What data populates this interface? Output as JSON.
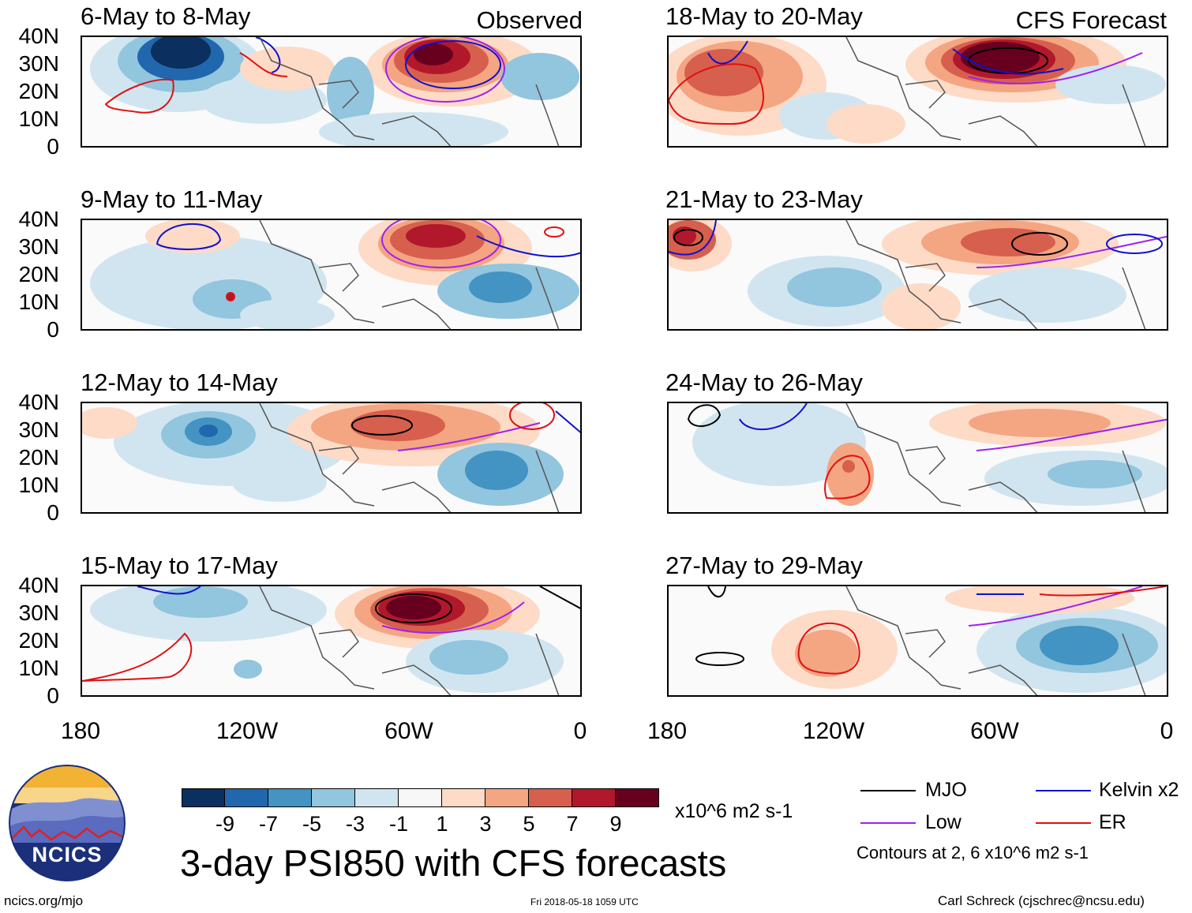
{
  "header": {
    "observed_label": "Observed",
    "forecast_label": "CFS Forecast"
  },
  "panels": [
    {
      "title": "6-May to 8-May",
      "column": "observed"
    },
    {
      "title": "9-May to 11-May",
      "column": "observed"
    },
    {
      "title": "12-May to 14-May",
      "column": "observed"
    },
    {
      "title": "15-May to 17-May",
      "column": "observed"
    },
    {
      "title": "18-May to 20-May",
      "column": "forecast"
    },
    {
      "title": "21-May to 23-May",
      "column": "forecast"
    },
    {
      "title": "24-May to 26-May",
      "column": "forecast"
    },
    {
      "title": "27-May to 29-May",
      "column": "forecast"
    }
  ],
  "axes": {
    "lat_labels": [
      "40N",
      "30N",
      "20N",
      "10N",
      "0"
    ],
    "lon_labels": [
      "180",
      "120W",
      "60W",
      "0"
    ]
  },
  "colorbar": {
    "colors": [
      "#0b2f5e",
      "#2067ad",
      "#4393c3",
      "#92c5de",
      "#d1e5f0",
      "#f7f7f7",
      "#fddbc7",
      "#f4a582",
      "#d6604d",
      "#b2182b",
      "#67001f"
    ],
    "ticks": [
      "-9",
      "-7",
      "-5",
      "-3",
      "-1",
      "1",
      "3",
      "5",
      "7",
      "9"
    ],
    "units": "x10^6 m2 s-1"
  },
  "legend": {
    "mjo": {
      "label": "MJO",
      "color": "#000000"
    },
    "kelvin": {
      "label": "Kelvin x2",
      "color": "#1010d0"
    },
    "low": {
      "label": "Low",
      "color": "#a020f0"
    },
    "er": {
      "label": "ER",
      "color": "#e01010"
    },
    "contours_note": "Contours at 2, 6 x10^6 m2 s-1"
  },
  "title": "3-day PSI850 with CFS forecasts",
  "footer": {
    "url": "ncics.org/mjo",
    "timestamp": "Fri 2018-05-18 1059 UTC",
    "author": "Carl Schreck (cjschrec@ncsu.edu)"
  },
  "logo": {
    "text": "NCICS"
  }
}
